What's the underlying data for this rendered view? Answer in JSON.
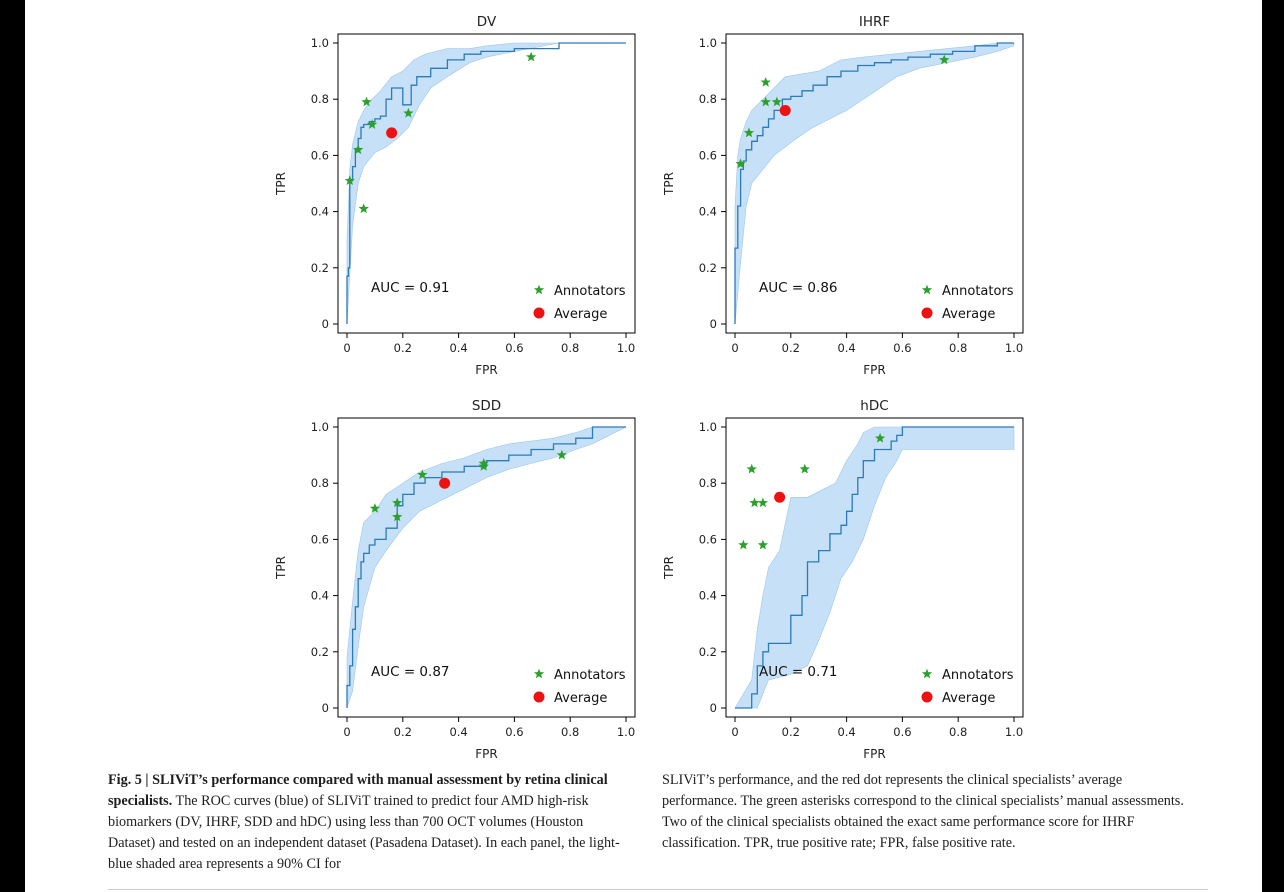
{
  "colors": {
    "roc_line": "#2c7bb6",
    "ci_fill": "#c6e0f7",
    "annotator": "#2ca02c",
    "average": "#ee1111"
  },
  "legend": {
    "annotators": "Annotators",
    "average": "Average"
  },
  "chart_data": [
    {
      "type": "line",
      "title": "DV",
      "xlabel": "FPR",
      "ylabel": "TPR",
      "xlim": [
        0,
        1
      ],
      "ylim": [
        0,
        1
      ],
      "xticks": [
        "0",
        "0.2",
        "0.4",
        "0.6",
        "0.8",
        "1.0"
      ],
      "yticks": [
        "0",
        "0.2",
        "0.4",
        "0.6",
        "0.8",
        "1.0"
      ],
      "auc_label": "AUC = 0.91",
      "legend_position": "bottom-right",
      "roc": {
        "x": [
          0,
          0,
          0.005,
          0.005,
          0.01,
          0.01,
          0.02,
          0.02,
          0.03,
          0.03,
          0.04,
          0.04,
          0.05,
          0.05,
          0.06,
          0.06,
          0.08,
          0.08,
          0.1,
          0.1,
          0.12,
          0.12,
          0.14,
          0.14,
          0.16,
          0.16,
          0.2,
          0.2,
          0.23,
          0.23,
          0.25,
          0.25,
          0.3,
          0.3,
          0.36,
          0.36,
          0.42,
          0.42,
          0.48,
          0.48,
          0.6,
          0.6,
          0.76,
          0.76,
          1.0
        ],
        "y": [
          0,
          0.17,
          0.17,
          0.2,
          0.2,
          0.51,
          0.51,
          0.56,
          0.56,
          0.62,
          0.62,
          0.66,
          0.66,
          0.7,
          0.7,
          0.71,
          0.71,
          0.72,
          0.72,
          0.73,
          0.73,
          0.74,
          0.74,
          0.8,
          0.8,
          0.84,
          0.84,
          0.78,
          0.78,
          0.85,
          0.85,
          0.88,
          0.88,
          0.91,
          0.91,
          0.94,
          0.94,
          0.96,
          0.96,
          0.97,
          0.97,
          0.98,
          0.98,
          1.0,
          1.0
        ]
      },
      "ci_upper": {
        "x": [
          0,
          0.01,
          0.02,
          0.04,
          0.06,
          0.08,
          0.12,
          0.16,
          0.2,
          0.24,
          0.28,
          0.36,
          0.44,
          0.5,
          0.6,
          0.76,
          1.0
        ],
        "y": [
          0.3,
          0.55,
          0.64,
          0.72,
          0.76,
          0.79,
          0.83,
          0.88,
          0.9,
          0.94,
          0.96,
          0.98,
          0.98,
          0.99,
          1.0,
          1.0,
          1.0
        ]
      },
      "ci_lower": {
        "x": [
          0,
          0.02,
          0.04,
          0.06,
          0.1,
          0.14,
          0.18,
          0.22,
          0.26,
          0.3,
          0.36,
          0.44,
          0.5,
          0.6,
          0.76,
          1.0
        ],
        "y": [
          0.0,
          0.35,
          0.5,
          0.56,
          0.61,
          0.63,
          0.66,
          0.7,
          0.78,
          0.84,
          0.88,
          0.93,
          0.95,
          0.97,
          1.0,
          1.0
        ]
      },
      "annotators": {
        "x": [
          0.01,
          0.04,
          0.07,
          0.09,
          0.06,
          0.22,
          0.66
        ],
        "y": [
          0.51,
          0.62,
          0.79,
          0.71,
          0.41,
          0.75,
          0.95
        ]
      },
      "average": {
        "x": [
          0.16
        ],
        "y": [
          0.68
        ]
      }
    },
    {
      "type": "line",
      "title": "IHRF",
      "xlabel": "FPR",
      "ylabel": "TPR",
      "xlim": [
        0,
        1
      ],
      "ylim": [
        0,
        1
      ],
      "xticks": [
        "0",
        "0.2",
        "0.4",
        "0.6",
        "0.8",
        "1.0"
      ],
      "yticks": [
        "0",
        "0.2",
        "0.4",
        "0.6",
        "0.8",
        "1.0"
      ],
      "auc_label": "AUC = 0.86",
      "legend_position": "bottom-right",
      "roc": {
        "x": [
          0,
          0,
          0.01,
          0.01,
          0.02,
          0.02,
          0.03,
          0.03,
          0.04,
          0.04,
          0.06,
          0.06,
          0.08,
          0.08,
          0.1,
          0.1,
          0.12,
          0.12,
          0.14,
          0.14,
          0.17,
          0.17,
          0.2,
          0.2,
          0.24,
          0.24,
          0.28,
          0.28,
          0.33,
          0.33,
          0.38,
          0.38,
          0.44,
          0.44,
          0.5,
          0.5,
          0.56,
          0.56,
          0.62,
          0.62,
          0.7,
          0.7,
          0.78,
          0.78,
          0.86,
          0.86,
          0.94,
          0.94,
          1.0
        ],
        "y": [
          0,
          0.27,
          0.27,
          0.42,
          0.42,
          0.55,
          0.55,
          0.58,
          0.58,
          0.62,
          0.62,
          0.65,
          0.65,
          0.67,
          0.67,
          0.7,
          0.7,
          0.73,
          0.73,
          0.76,
          0.76,
          0.8,
          0.8,
          0.81,
          0.81,
          0.83,
          0.83,
          0.85,
          0.85,
          0.88,
          0.88,
          0.9,
          0.9,
          0.92,
          0.92,
          0.93,
          0.93,
          0.94,
          0.94,
          0.95,
          0.95,
          0.96,
          0.96,
          0.97,
          0.97,
          0.99,
          0.99,
          1.0,
          1.0
        ]
      },
      "ci_upper": {
        "x": [
          0,
          0.01,
          0.02,
          0.04,
          0.06,
          0.1,
          0.14,
          0.18,
          0.24,
          0.3,
          0.38,
          0.46,
          0.56,
          0.66,
          0.76,
          0.86,
          0.94,
          1.0
        ],
        "y": [
          0.42,
          0.6,
          0.66,
          0.72,
          0.76,
          0.8,
          0.84,
          0.88,
          0.89,
          0.9,
          0.94,
          0.95,
          0.96,
          0.97,
          0.98,
          0.99,
          1.0,
          1.0
        ]
      },
      "ci_lower": {
        "x": [
          0,
          0.02,
          0.04,
          0.06,
          0.1,
          0.14,
          0.18,
          0.22,
          0.28,
          0.34,
          0.4,
          0.46,
          0.52,
          0.58,
          0.66,
          0.76,
          0.86,
          0.94,
          1.0
        ],
        "y": [
          0.0,
          0.22,
          0.42,
          0.5,
          0.55,
          0.6,
          0.63,
          0.66,
          0.7,
          0.73,
          0.76,
          0.8,
          0.84,
          0.88,
          0.91,
          0.93,
          0.95,
          0.97,
          0.99
        ]
      },
      "annotators": {
        "x": [
          0.02,
          0.05,
          0.11,
          0.11,
          0.15,
          0.75
        ],
        "y": [
          0.57,
          0.68,
          0.86,
          0.79,
          0.79,
          0.94
        ]
      },
      "average": {
        "x": [
          0.18
        ],
        "y": [
          0.76
        ]
      }
    },
    {
      "type": "line",
      "title": "SDD",
      "xlabel": "FPR",
      "ylabel": "TPR",
      "xlim": [
        0,
        1
      ],
      "ylim": [
        0,
        1
      ],
      "xticks": [
        "0",
        "0.2",
        "0.4",
        "0.6",
        "0.8",
        "1.0"
      ],
      "yticks": [
        "0",
        "0.2",
        "0.4",
        "0.6",
        "0.8",
        "1.0"
      ],
      "auc_label": "AUC = 0.87",
      "legend_position": "bottom-right",
      "roc": {
        "x": [
          0,
          0,
          0.01,
          0.01,
          0.02,
          0.02,
          0.03,
          0.03,
          0.04,
          0.04,
          0.05,
          0.05,
          0.06,
          0.06,
          0.08,
          0.08,
          0.1,
          0.1,
          0.14,
          0.14,
          0.18,
          0.18,
          0.2,
          0.2,
          0.24,
          0.24,
          0.28,
          0.28,
          0.34,
          0.34,
          0.42,
          0.42,
          0.5,
          0.5,
          0.58,
          0.58,
          0.66,
          0.66,
          0.74,
          0.74,
          0.82,
          0.82,
          0.88,
          0.88,
          1.0
        ],
        "y": [
          0,
          0.08,
          0.08,
          0.15,
          0.15,
          0.28,
          0.28,
          0.36,
          0.36,
          0.46,
          0.46,
          0.52,
          0.52,
          0.55,
          0.55,
          0.58,
          0.58,
          0.6,
          0.6,
          0.64,
          0.64,
          0.72,
          0.72,
          0.76,
          0.76,
          0.8,
          0.8,
          0.82,
          0.82,
          0.84,
          0.84,
          0.86,
          0.86,
          0.88,
          0.88,
          0.9,
          0.9,
          0.92,
          0.92,
          0.94,
          0.94,
          0.96,
          0.96,
          1.0,
          1.0
        ]
      },
      "ci_upper": {
        "x": [
          0,
          0.02,
          0.04,
          0.06,
          0.1,
          0.14,
          0.2,
          0.26,
          0.34,
          0.42,
          0.5,
          0.58,
          0.66,
          0.74,
          0.82,
          0.88,
          1.0
        ],
        "y": [
          0.18,
          0.38,
          0.56,
          0.66,
          0.7,
          0.76,
          0.8,
          0.84,
          0.87,
          0.89,
          0.92,
          0.94,
          0.95,
          0.96,
          0.98,
          1.0,
          1.0
        ]
      },
      "ci_lower": {
        "x": [
          0,
          0.02,
          0.04,
          0.06,
          0.1,
          0.14,
          0.2,
          0.26,
          0.34,
          0.42,
          0.5,
          0.58,
          0.66,
          0.74,
          0.82,
          0.88,
          0.92,
          1.0
        ],
        "y": [
          0.0,
          0.06,
          0.22,
          0.36,
          0.5,
          0.56,
          0.64,
          0.7,
          0.74,
          0.78,
          0.82,
          0.85,
          0.87,
          0.89,
          0.92,
          0.94,
          0.96,
          1.0
        ]
      },
      "annotators": {
        "x": [
          0.1,
          0.18,
          0.18,
          0.27,
          0.49,
          0.49,
          0.77
        ],
        "y": [
          0.71,
          0.73,
          0.68,
          0.83,
          0.87,
          0.86,
          0.9
        ]
      },
      "average": {
        "x": [
          0.35
        ],
        "y": [
          0.8
        ]
      }
    },
    {
      "type": "line",
      "title": "hDC",
      "xlabel": "FPR",
      "ylabel": "TPR",
      "xlim": [
        0,
        1
      ],
      "ylim": [
        0,
        1
      ],
      "xticks": [
        "0",
        "0.2",
        "0.4",
        "0.6",
        "0.8",
        "1.0"
      ],
      "yticks": [
        "0",
        "0.2",
        "0.4",
        "0.6",
        "0.8",
        "1.0"
      ],
      "auc_label": "AUC = 0.71",
      "legend_position": "bottom-right",
      "roc": {
        "x": [
          0,
          0.06,
          0.06,
          0.08,
          0.08,
          0.1,
          0.1,
          0.12,
          0.12,
          0.2,
          0.2,
          0.24,
          0.24,
          0.26,
          0.26,
          0.3,
          0.3,
          0.34,
          0.34,
          0.38,
          0.38,
          0.4,
          0.4,
          0.42,
          0.42,
          0.44,
          0.44,
          0.46,
          0.46,
          0.5,
          0.5,
          0.56,
          0.56,
          0.58,
          0.58,
          0.6,
          0.6,
          1.0
        ],
        "y": [
          0,
          0,
          0.05,
          0.05,
          0.15,
          0.15,
          0.2,
          0.2,
          0.23,
          0.23,
          0.33,
          0.33,
          0.4,
          0.4,
          0.52,
          0.52,
          0.56,
          0.56,
          0.62,
          0.62,
          0.65,
          0.65,
          0.7,
          0.7,
          0.76,
          0.76,
          0.82,
          0.82,
          0.88,
          0.88,
          0.92,
          0.92,
          0.95,
          0.95,
          0.97,
          0.97,
          1.0,
          1.0
        ]
      },
      "ci_upper": {
        "x": [
          0,
          0.06,
          0.08,
          0.1,
          0.12,
          0.16,
          0.2,
          0.26,
          0.32,
          0.36,
          0.4,
          0.44,
          0.46,
          0.5,
          0.54,
          0.58,
          0.6,
          1.0
        ],
        "y": [
          0.0,
          0.1,
          0.28,
          0.4,
          0.5,
          0.56,
          0.75,
          0.75,
          0.78,
          0.8,
          0.88,
          0.94,
          0.98,
          1.0,
          1.0,
          1.0,
          1.0,
          1.0
        ]
      },
      "ci_lower": {
        "x": [
          0,
          0.08,
          0.12,
          0.2,
          0.26,
          0.3,
          0.34,
          0.38,
          0.42,
          0.46,
          0.5,
          0.54,
          0.58,
          0.6,
          1.0
        ],
        "y": [
          0.0,
          0.0,
          0.1,
          0.12,
          0.15,
          0.24,
          0.34,
          0.46,
          0.52,
          0.6,
          0.72,
          0.82,
          0.88,
          0.92,
          0.92
        ]
      },
      "annotators": {
        "x": [
          0.03,
          0.06,
          0.07,
          0.1,
          0.1,
          0.25,
          0.52
        ],
        "y": [
          0.58,
          0.85,
          0.73,
          0.73,
          0.58,
          0.85,
          0.96
        ]
      },
      "average": {
        "x": [
          0.16
        ],
        "y": [
          0.75
        ]
      }
    }
  ],
  "caption": {
    "label": "Fig. 5 | SLIViT’s performance compared with manual assessment by retina clinical specialists.",
    "text_left": " The ROC curves (blue) of SLIViT trained to predict four AMD high-risk biomarkers (DV, IHRF, SDD and hDC) using less than 700 OCT volumes (Houston Dataset) and tested on an independent dataset (Pasadena Dataset). In each panel, the light-blue shaded area represents a 90% CI for",
    "text_right": "SLIViT’s performance, and the red dot represents the clinical specialists’ average performance. The green asterisks correspond to the clinical specialists’ manual assessments. Two of the clinical specialists obtained the exact same performance score for IHRF classification. TPR, true positive rate; FPR, false positive rate."
  }
}
